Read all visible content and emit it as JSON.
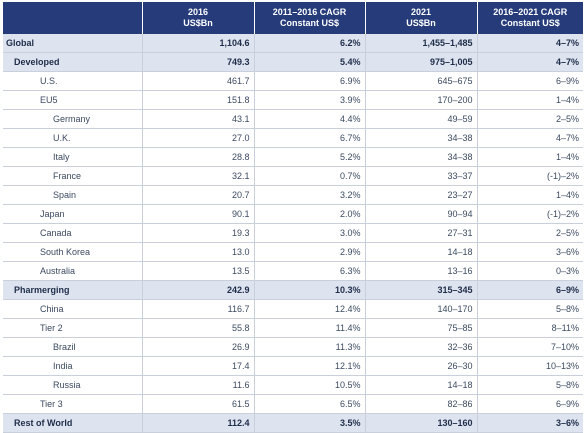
{
  "headers": [
    {
      "line1": "",
      "line2": ""
    },
    {
      "line1": "2016",
      "line2": "US$Bn"
    },
    {
      "line1": "2011–2016 CAGR",
      "line2": "Constant US$"
    },
    {
      "line1": "2021",
      "line2": "US$Bn"
    },
    {
      "line1": "2016–2021 CAGR",
      "line2": "Constant US$"
    }
  ],
  "rows": [
    {
      "name": "Global",
      "level": 0,
      "spend_2016": "1,104.6",
      "cagr_2011_2016": "6.2%",
      "spend_2021": "1,455–1,485",
      "cagr_2016_2021": "4–7%"
    },
    {
      "name": "Developed",
      "level": 1,
      "spend_2016": "749.3",
      "cagr_2011_2016": "5.4%",
      "spend_2021": "975–1,005",
      "cagr_2016_2021": "4–7%"
    },
    {
      "name": "U.S.",
      "level": 2,
      "spend_2016": "461.7",
      "cagr_2011_2016": "6.9%",
      "spend_2021": "645–675",
      "cagr_2016_2021": "6–9%"
    },
    {
      "name": "EU5",
      "level": 2,
      "spend_2016": "151.8",
      "cagr_2011_2016": "3.9%",
      "spend_2021": "170–200",
      "cagr_2016_2021": "1–4%"
    },
    {
      "name": "Germany",
      "level": 3,
      "spend_2016": "43.1",
      "cagr_2011_2016": "4.4%",
      "spend_2021": "49–59",
      "cagr_2016_2021": "2–5%"
    },
    {
      "name": "U.K.",
      "level": 3,
      "spend_2016": "27.0",
      "cagr_2011_2016": "6.7%",
      "spend_2021": "34–38",
      "cagr_2016_2021": "4–7%"
    },
    {
      "name": "Italy",
      "level": 3,
      "spend_2016": "28.8",
      "cagr_2011_2016": "5.2%",
      "spend_2021": "34–38",
      "cagr_2016_2021": "1–4%"
    },
    {
      "name": "France",
      "level": 3,
      "spend_2016": "32.1",
      "cagr_2011_2016": "0.7%",
      "spend_2021": "33–37",
      "cagr_2016_2021": "(-1)–2%"
    },
    {
      "name": "Spain",
      "level": 3,
      "spend_2016": "20.7",
      "cagr_2011_2016": "3.2%",
      "spend_2021": "23–27",
      "cagr_2016_2021": "1–4%"
    },
    {
      "name": "Japan",
      "level": 2,
      "spend_2016": "90.1",
      "cagr_2011_2016": "2.0%",
      "spend_2021": "90–94",
      "cagr_2016_2021": "(-1)–2%"
    },
    {
      "name": "Canada",
      "level": 2,
      "spend_2016": "19.3",
      "cagr_2011_2016": "3.0%",
      "spend_2021": "27–31",
      "cagr_2016_2021": "2–5%"
    },
    {
      "name": "South Korea",
      "level": 2,
      "spend_2016": "13.0",
      "cagr_2011_2016": "2.9%",
      "spend_2021": "14–18",
      "cagr_2016_2021": "3–6%"
    },
    {
      "name": "Australia",
      "level": 2,
      "spend_2016": "13.5",
      "cagr_2011_2016": "6.3%",
      "spend_2021": "13–16",
      "cagr_2016_2021": "0–3%"
    },
    {
      "name": "Pharmerging",
      "level": 1,
      "spend_2016": "242.9",
      "cagr_2011_2016": "10.3%",
      "spend_2021": "315–345",
      "cagr_2016_2021": "6–9%"
    },
    {
      "name": "China",
      "level": 2,
      "spend_2016": "116.7",
      "cagr_2011_2016": "12.4%",
      "spend_2021": "140–170",
      "cagr_2016_2021": "5–8%"
    },
    {
      "name": "Tier 2",
      "level": 2,
      "spend_2016": "55.8",
      "cagr_2011_2016": "11.4%",
      "spend_2021": "75–85",
      "cagr_2016_2021": "8–11%"
    },
    {
      "name": "Brazil",
      "level": 3,
      "spend_2016": "26.9",
      "cagr_2011_2016": "11.3%",
      "spend_2021": "32–36",
      "cagr_2016_2021": "7–10%"
    },
    {
      "name": "India",
      "level": 3,
      "spend_2016": "17.4",
      "cagr_2011_2016": "12.1%",
      "spend_2021": "26–30",
      "cagr_2016_2021": "10–13%"
    },
    {
      "name": "Russia",
      "level": 3,
      "spend_2016": "11.6",
      "cagr_2011_2016": "10.5%",
      "spend_2021": "14–18",
      "cagr_2016_2021": "5–8%"
    },
    {
      "name": "Tier 3",
      "level": 2,
      "spend_2016": "61.5",
      "cagr_2011_2016": "6.5%",
      "spend_2021": "82–86",
      "cagr_2016_2021": "6–9%"
    },
    {
      "name": "Rest of World",
      "level": 1,
      "spend_2016": "112.4",
      "cagr_2011_2016": "3.5%",
      "spend_2021": "130–160",
      "cagr_2016_2021": "3–6%"
    }
  ]
}
